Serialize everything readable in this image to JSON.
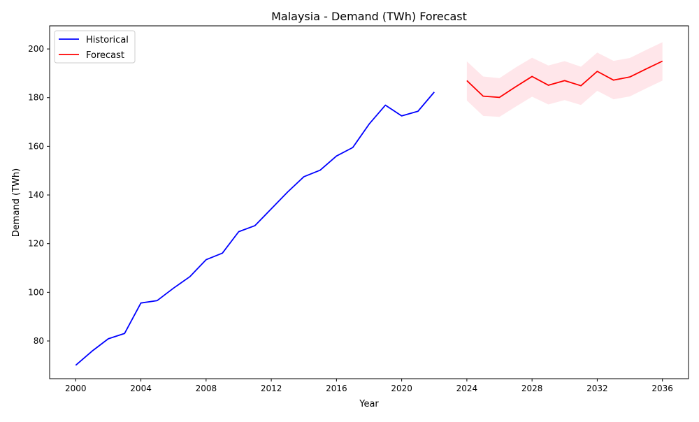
{
  "chart_data": {
    "type": "line",
    "title": "Malaysia - Demand (TWh) Forecast",
    "xlabel": "Year",
    "ylabel": "Demand (TWh)",
    "xlim": [
      1998.4,
      2037.6
    ],
    "ylim": [
      64.5,
      209.5
    ],
    "x_ticks": [
      2000,
      2004,
      2008,
      2012,
      2016,
      2020,
      2024,
      2028,
      2032,
      2036
    ],
    "y_ticks": [
      80,
      100,
      120,
      140,
      160,
      180,
      200
    ],
    "grid": false,
    "legend_position": "top-left",
    "series": [
      {
        "name": "Historical",
        "color": "#0000ff",
        "x": [
          2000,
          2001,
          2002,
          2003,
          2004,
          2005,
          2006,
          2007,
          2008,
          2009,
          2010,
          2011,
          2012,
          2013,
          2014,
          2015,
          2016,
          2017,
          2018,
          2019,
          2020,
          2021,
          2022
        ],
        "values": [
          70.0,
          75.8,
          80.9,
          83.1,
          95.6,
          96.6,
          101.7,
          106.4,
          113.4,
          116.1,
          124.9,
          127.4,
          134.3,
          141.2,
          147.5,
          150.2,
          156.0,
          159.5,
          169.1,
          176.9,
          172.5,
          174.4,
          182.3
        ]
      },
      {
        "name": "Forecast",
        "color": "#ff0000",
        "band_color": "#ffc0cb",
        "x": [
          2024,
          2025,
          2026,
          2027,
          2028,
          2029,
          2030,
          2031,
          2032,
          2033,
          2034,
          2035,
          2036
        ],
        "values": [
          187.0,
          180.6,
          180.1,
          184.5,
          188.7,
          185.1,
          187.0,
          184.9,
          190.8,
          187.2,
          188.5,
          191.8,
          195.0
        ],
        "lower": [
          178.8,
          172.5,
          172.1,
          176.3,
          180.4,
          177.2,
          179.0,
          177.0,
          182.8,
          179.3,
          180.5,
          183.8,
          187.0
        ],
        "upper": [
          194.9,
          188.7,
          188.0,
          192.4,
          196.4,
          193.2,
          195.0,
          192.7,
          198.5,
          195.1,
          196.3,
          199.6,
          202.8
        ]
      }
    ]
  }
}
